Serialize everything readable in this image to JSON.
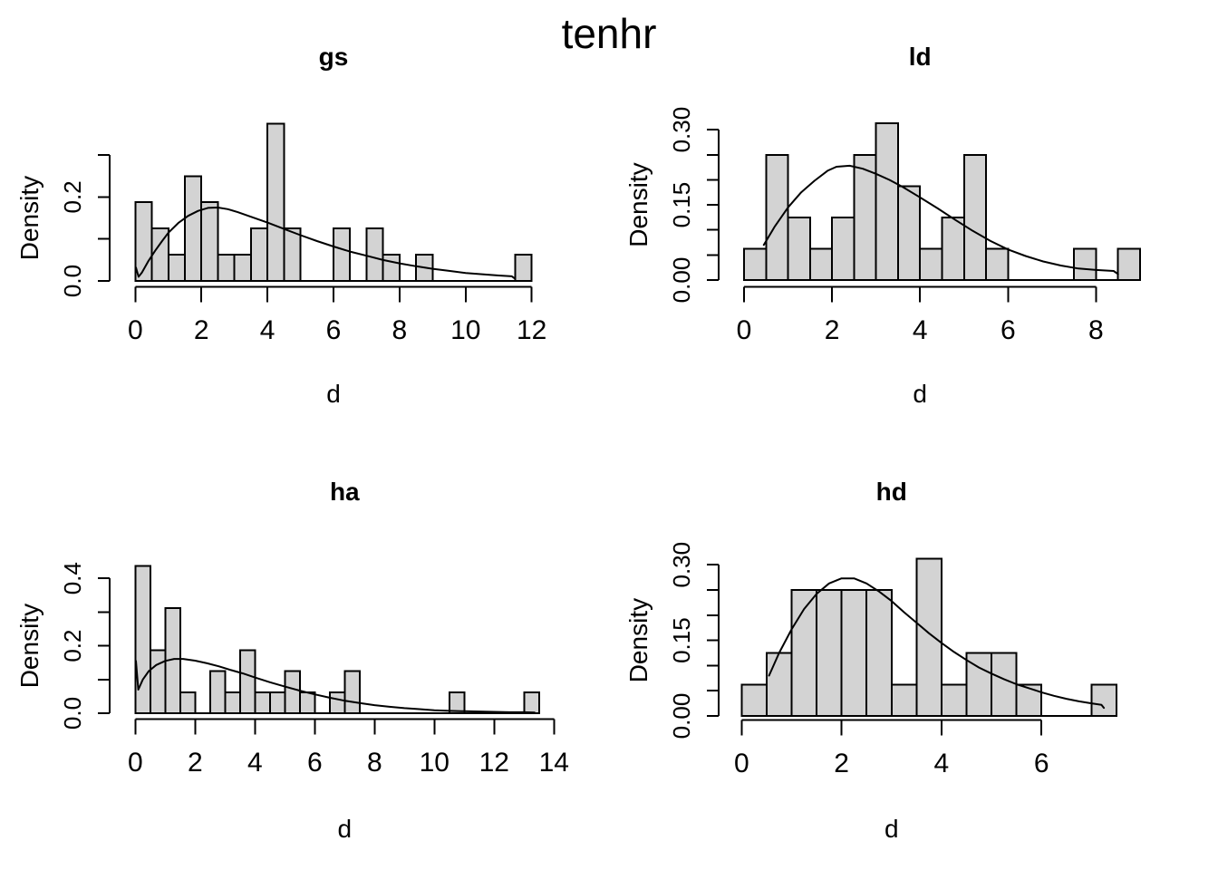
{
  "figure": {
    "title": "tenhr",
    "background": "#ffffff"
  },
  "colors": {
    "bar_fill": "#d3d3d3",
    "stroke": "#000000"
  },
  "chart_data": [
    {
      "type": "bar",
      "subtype": "histogram-with-density-curve",
      "title": "gs",
      "xlabel": "d",
      "ylabel": "Density",
      "x_ticks": [
        0,
        2,
        4,
        6,
        8,
        10,
        12
      ],
      "y_ticks": [
        0,
        0.1,
        0.2,
        0.3
      ],
      "y_tick_labels": [
        "0.0",
        "",
        "0.2",
        ""
      ],
      "xlim": [
        0,
        12
      ],
      "ylim": [
        0,
        0.38
      ],
      "grid": false,
      "legend": "none",
      "bin_start": 0,
      "bin_width": 0.5,
      "bar_densities": [
        0.1875,
        0.125,
        0.0625,
        0.25,
        0.1875,
        0.0625,
        0.0625,
        0.125,
        0.375,
        0.125,
        0,
        0,
        0.125,
        0,
        0.125,
        0.0625,
        0,
        0.0625,
        0,
        0,
        0,
        0,
        0,
        0.0625
      ],
      "density_curve": [
        [
          0.02,
          0.032
        ],
        [
          0.1,
          0.01
        ],
        [
          0.2,
          0.02
        ],
        [
          0.4,
          0.048
        ],
        [
          0.6,
          0.072
        ],
        [
          0.8,
          0.094
        ],
        [
          1,
          0.115
        ],
        [
          1.3,
          0.138
        ],
        [
          1.6,
          0.155
        ],
        [
          1.9,
          0.167
        ],
        [
          2.2,
          0.174
        ],
        [
          2.5,
          0.175
        ],
        [
          2.8,
          0.171
        ],
        [
          3.1,
          0.164
        ],
        [
          3.5,
          0.153
        ],
        [
          4,
          0.139
        ],
        [
          4.5,
          0.124
        ],
        [
          5,
          0.109
        ],
        [
          5.5,
          0.095
        ],
        [
          6,
          0.082
        ],
        [
          6.5,
          0.07
        ],
        [
          7,
          0.06
        ],
        [
          7.5,
          0.05
        ],
        [
          8,
          0.042
        ],
        [
          8.5,
          0.035
        ],
        [
          9,
          0.029
        ],
        [
          9.5,
          0.024
        ],
        [
          10,
          0.019
        ],
        [
          10.5,
          0.016
        ],
        [
          11,
          0.013
        ],
        [
          11.4,
          0.011
        ],
        [
          11.5,
          0.005
        ]
      ]
    },
    {
      "type": "bar",
      "subtype": "histogram-with-density-curve",
      "title": "ld",
      "xlabel": "d",
      "ylabel": "Density",
      "x_ticks": [
        0,
        2,
        4,
        6,
        8
      ],
      "y_ticks": [
        0,
        0.05,
        0.1,
        0.15,
        0.2,
        0.25,
        0.3
      ],
      "y_tick_labels": [
        "0.00",
        "",
        "",
        "0.15",
        "",
        "",
        "0.30"
      ],
      "xlim": [
        0,
        9
      ],
      "ylim": [
        0,
        0.33
      ],
      "grid": false,
      "legend": "none",
      "bin_start": 0,
      "bin_width": 0.5,
      "bar_densities": [
        0.0625,
        0.25,
        0.125,
        0.0625,
        0.125,
        0.25,
        0.3125,
        0.1875,
        0.0625,
        0.125,
        0.25,
        0.0625,
        0,
        0,
        0,
        0.0625,
        0,
        0.0625
      ],
      "density_curve": [
        [
          0.45,
          0.07
        ],
        [
          0.7,
          0.107
        ],
        [
          1,
          0.145
        ],
        [
          1.3,
          0.175
        ],
        [
          1.6,
          0.198
        ],
        [
          1.9,
          0.218
        ],
        [
          2.1,
          0.226
        ],
        [
          2.4,
          0.228
        ],
        [
          2.7,
          0.222
        ],
        [
          3,
          0.212
        ],
        [
          3.3,
          0.2
        ],
        [
          3.6,
          0.186
        ],
        [
          4,
          0.165
        ],
        [
          4.4,
          0.143
        ],
        [
          4.8,
          0.12
        ],
        [
          5.2,
          0.098
        ],
        [
          5.6,
          0.078
        ],
        [
          6,
          0.061
        ],
        [
          6.4,
          0.048
        ],
        [
          6.8,
          0.037
        ],
        [
          7.2,
          0.029
        ],
        [
          7.6,
          0.023
        ],
        [
          8,
          0.02
        ],
        [
          8.4,
          0.018
        ],
        [
          8.5,
          0.012
        ]
      ]
    },
    {
      "type": "bar",
      "subtype": "histogram-with-density-curve",
      "title": "ha",
      "xlabel": "d",
      "ylabel": "Density",
      "x_ticks": [
        0,
        2,
        4,
        6,
        8,
        10,
        12,
        14
      ],
      "y_ticks": [
        0,
        0.1,
        0.2,
        0.3,
        0.4
      ],
      "y_tick_labels": [
        "0.0",
        "",
        "0.2",
        "",
        "0.4"
      ],
      "xlim": [
        0,
        13.5
      ],
      "ylim": [
        0,
        0.45
      ],
      "grid": false,
      "legend": "none",
      "bin_start": 0,
      "bin_width": 0.5,
      "bar_densities": [
        0.4375,
        0.1875,
        0.3125,
        0.0625,
        0,
        0.125,
        0.0625,
        0.1875,
        0.0625,
        0.0625,
        0.125,
        0.0625,
        0,
        0.0625,
        0.125,
        0,
        0,
        0,
        0,
        0,
        0,
        0.0625,
        0,
        0,
        0,
        0,
        0.0625
      ],
      "density_curve": [
        [
          0.02,
          0.155
        ],
        [
          0.1,
          0.07
        ],
        [
          0.25,
          0.1
        ],
        [
          0.45,
          0.125
        ],
        [
          0.7,
          0.143
        ],
        [
          1,
          0.155
        ],
        [
          1.3,
          0.161
        ],
        [
          1.6,
          0.161
        ],
        [
          2,
          0.156
        ],
        [
          2.4,
          0.148
        ],
        [
          2.8,
          0.139
        ],
        [
          3.2,
          0.128
        ],
        [
          3.6,
          0.118
        ],
        [
          4,
          0.106
        ],
        [
          4.5,
          0.092
        ],
        [
          5,
          0.079
        ],
        [
          5.5,
          0.067
        ],
        [
          6,
          0.056
        ],
        [
          6.5,
          0.046
        ],
        [
          7,
          0.037
        ],
        [
          7.5,
          0.03
        ],
        [
          8,
          0.024
        ],
        [
          8.5,
          0.019
        ],
        [
          9,
          0.015
        ],
        [
          9.5,
          0.012
        ],
        [
          10,
          0.009
        ],
        [
          10.5,
          0.007
        ],
        [
          11,
          0.006
        ],
        [
          11.5,
          0.005
        ],
        [
          12,
          0.004
        ],
        [
          12.5,
          0.003
        ],
        [
          13,
          0.003
        ],
        [
          13.35,
          0.002
        ]
      ]
    },
    {
      "type": "bar",
      "subtype": "histogram-with-density-curve",
      "title": "hd",
      "xlabel": "d",
      "ylabel": "Density",
      "x_ticks": [
        0,
        2,
        4,
        6
      ],
      "y_ticks": [
        0,
        0.05,
        0.1,
        0.15,
        0.2,
        0.25,
        0.3
      ],
      "y_tick_labels": [
        "0.00",
        "",
        "",
        "0.15",
        "",
        "",
        "0.30"
      ],
      "xlim": [
        0,
        7.5
      ],
      "ylim": [
        0,
        0.33
      ],
      "grid": false,
      "legend": "none",
      "bin_start": 0,
      "bin_width": 0.5,
      "bar_densities": [
        0.0625,
        0.125,
        0.25,
        0.25,
        0.25,
        0.25,
        0.0625,
        0.3125,
        0.0625,
        0.125,
        0.125,
        0.0625,
        0,
        0,
        0.0625
      ],
      "density_curve": [
        [
          0.55,
          0.08
        ],
        [
          0.75,
          0.125
        ],
        [
          1,
          0.172
        ],
        [
          1.25,
          0.212
        ],
        [
          1.5,
          0.242
        ],
        [
          1.75,
          0.263
        ],
        [
          2,
          0.273
        ],
        [
          2.25,
          0.273
        ],
        [
          2.5,
          0.263
        ],
        [
          2.75,
          0.247
        ],
        [
          3,
          0.228
        ],
        [
          3.25,
          0.206
        ],
        [
          3.5,
          0.185
        ],
        [
          3.75,
          0.164
        ],
        [
          4,
          0.145
        ],
        [
          4.25,
          0.127
        ],
        [
          4.5,
          0.111
        ],
        [
          4.75,
          0.096
        ],
        [
          5,
          0.084
        ],
        [
          5.25,
          0.073
        ],
        [
          5.5,
          0.063
        ],
        [
          5.75,
          0.055
        ],
        [
          6,
          0.047
        ],
        [
          6.25,
          0.04
        ],
        [
          6.5,
          0.034
        ],
        [
          6.75,
          0.029
        ],
        [
          7,
          0.025
        ],
        [
          7.2,
          0.022
        ],
        [
          7.25,
          0.016
        ]
      ]
    }
  ]
}
